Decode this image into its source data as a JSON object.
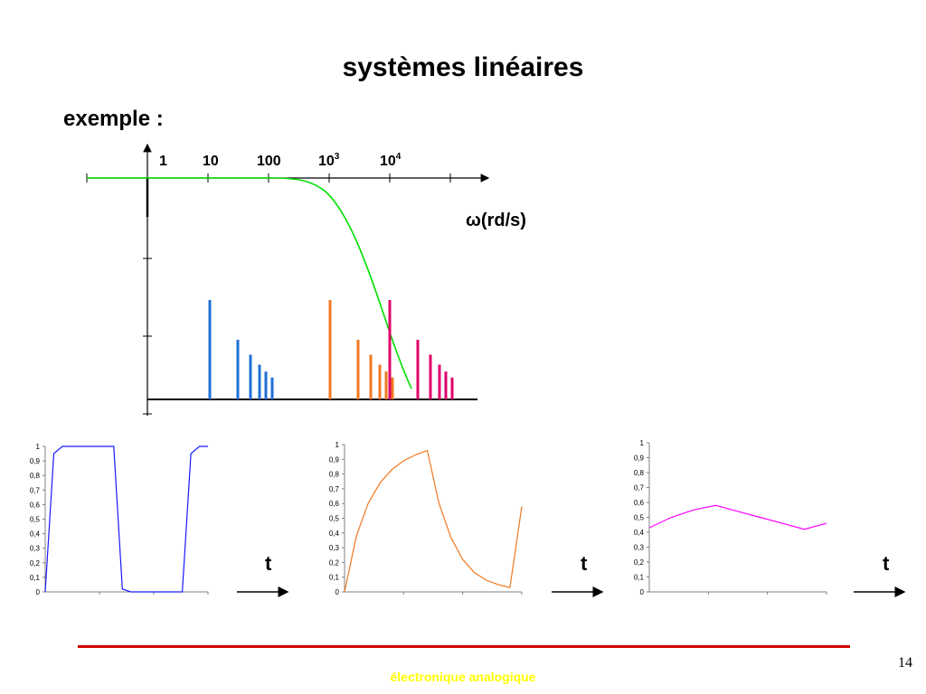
{
  "slide": {
    "title": "systèmes linéaires",
    "subtitle": "exemple :",
    "omega_label": "(rd/s)",
    "omega_symbol": "ω",
    "freq_ticks": [
      {
        "base": "1",
        "exp": ""
      },
      {
        "base": "10",
        "exp": ""
      },
      {
        "base": "100",
        "exp": ""
      },
      {
        "base": "10",
        "exp": "3"
      },
      {
        "base": "10",
        "exp": "4"
      }
    ],
    "t_label": "t",
    "footer_text": "électronique analogique",
    "page_number": "14",
    "colors": {
      "gain_curve": "#00e000",
      "spectrum_blue": "#1f6fd6",
      "spectrum_orange": "#f07820",
      "spectrum_magenta": "#e0006a",
      "square_wave": "#1a1aff",
      "rc_wave": "#f07820",
      "triangle_wave": "#ff00ff",
      "footer_line": "#cc0000",
      "footer_text": "#ffff00"
    }
  },
  "chart_data": [
    {
      "type": "line",
      "name": "gain",
      "x_scale": "log",
      "x": [
        1,
        10,
        100,
        300,
        1000,
        3000,
        10000,
        30000
      ],
      "y": [
        0,
        0,
        -0.5,
        -2,
        -10,
        -30,
        -60,
        -90
      ]
    },
    {
      "type": "bar",
      "series": [
        {
          "values": [
            1.0,
            0.6,
            0.45,
            0.35,
            0.28,
            0.22
          ]
        },
        {
          "values": [
            1.0,
            0.6,
            0.45,
            0.35,
            0.28,
            0.22
          ]
        },
        {
          "values": [
            1.0,
            0.6,
            0.45,
            0.35,
            0.28,
            0.22
          ]
        }
      ]
    },
    {
      "type": "line",
      "ylim": [
        0,
        1
      ],
      "y_ticks": [
        "0",
        "0,1",
        "0,2",
        "0,3",
        "0,4",
        "0,5",
        "0,6",
        "0,7",
        "0,8",
        "0,9",
        "1"
      ],
      "y": [
        0,
        0.95,
        1,
        1,
        1,
        1,
        1,
        1,
        1,
        0.02,
        0,
        0,
        0,
        0,
        0,
        0,
        0,
        0.95,
        1,
        1
      ]
    },
    {
      "type": "line",
      "ylim": [
        0,
        1
      ],
      "y_ticks": [
        "0",
        "0,1",
        "0,2",
        "0,3",
        "0,4",
        "0,5",
        "0,6",
        "0,7",
        "0,8",
        "0,9",
        "1"
      ],
      "y": [
        0,
        0.38,
        0.6,
        0.74,
        0.83,
        0.89,
        0.93,
        0.96,
        0.6,
        0.37,
        0.22,
        0.13,
        0.08,
        0.05,
        0.03,
        0.58
      ]
    },
    {
      "type": "line",
      "ylim": [
        0,
        1
      ],
      "y_ticks": [
        "0",
        "0,1",
        "0,2",
        "0,3",
        "0,4",
        "0,5",
        "0,6",
        "0,7",
        "0,8",
        "0,9",
        "1"
      ],
      "y": [
        0.43,
        0.5,
        0.55,
        0.58,
        0.54,
        0.5,
        0.46,
        0.42,
        0.46
      ]
    }
  ]
}
